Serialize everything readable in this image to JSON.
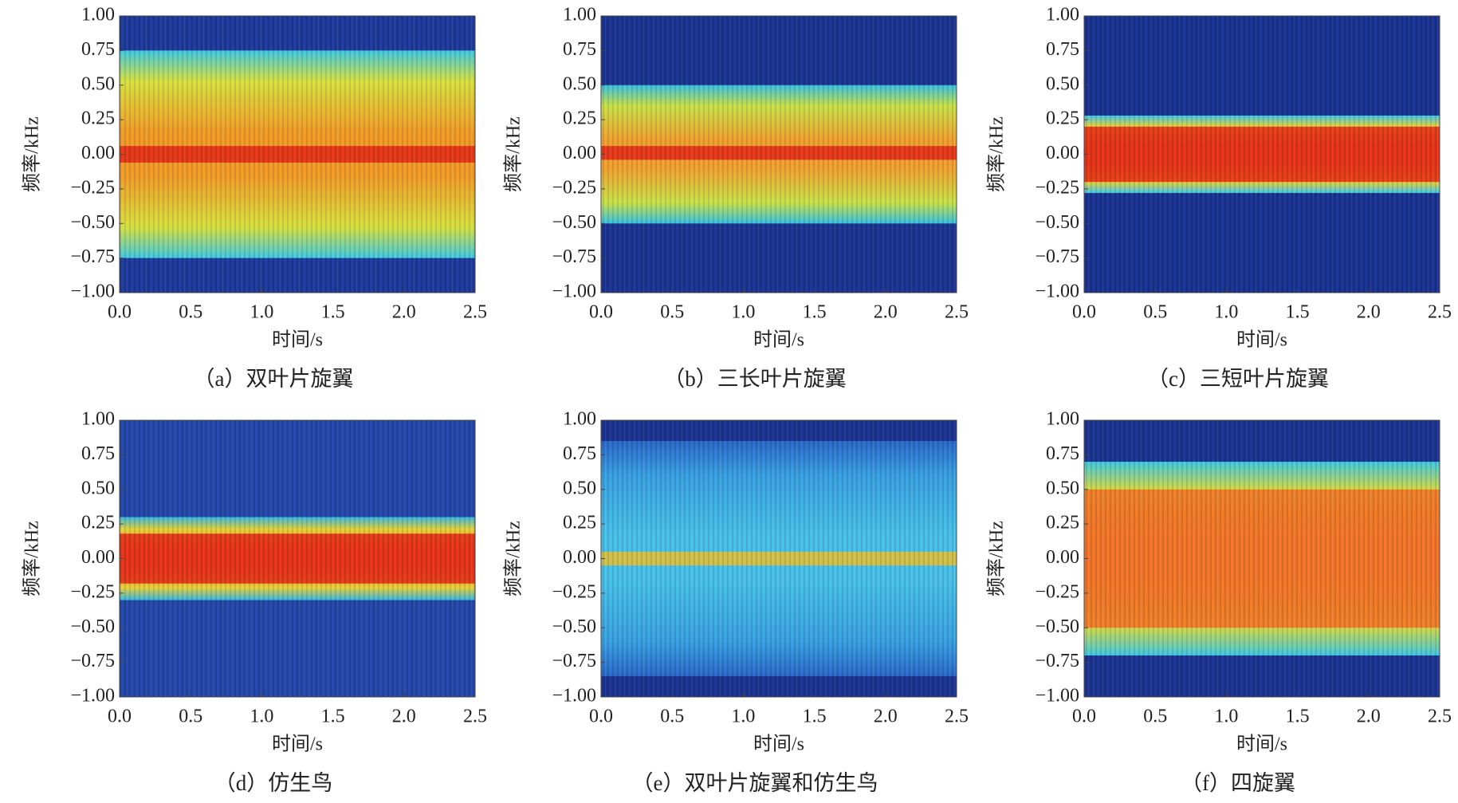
{
  "chart_data": [
    {
      "type": "spectrogram",
      "caption": "（a）双叶片旋翼",
      "x_label": "时间/s",
      "y_label": "频率/kHz",
      "xlim": [
        0,
        2.5
      ],
      "ylim": [
        -1,
        1
      ],
      "xticks": [
        {
          "value": 0,
          "label": "0.0"
        },
        {
          "value": 0.5,
          "label": "0.5"
        },
        {
          "value": 1,
          "label": "1.0"
        },
        {
          "value": 1.5,
          "label": "1.5"
        },
        {
          "value": 2,
          "label": "2.0"
        },
        {
          "value": 2.5,
          "label": "2.5"
        }
      ],
      "yticks": [
        {
          "value": 1,
          "label": "1.00"
        },
        {
          "value": 0.75,
          "label": "0.75"
        },
        {
          "value": 0.5,
          "label": "0.50"
        },
        {
          "value": 0.25,
          "label": "0.25"
        },
        {
          "value": 0,
          "label": "0.00"
        },
        {
          "value": -0.25,
          "label": "−0.25"
        },
        {
          "value": -0.5,
          "label": "−0.50"
        },
        {
          "value": -0.75,
          "label": "−0.75"
        },
        {
          "value": -1,
          "label": "−1.00"
        }
      ],
      "band": [
        -0.75,
        0.75
      ],
      "core": [
        -0.06,
        0.06
      ],
      "background": "#1e3a9a",
      "band_colors": [
        "#40c8e0",
        "#d8e040",
        "#f09a28"
      ],
      "core_color": "#e02818"
    },
    {
      "type": "spectrogram",
      "caption": "（b）三长叶片旋翼",
      "x_label": "时间/s",
      "y_label": "频率/kHz",
      "xlim": [
        0,
        2.5
      ],
      "ylim": [
        -1,
        1
      ],
      "xticks": [
        {
          "value": 0,
          "label": "0.0"
        },
        {
          "value": 0.5,
          "label": "0.5"
        },
        {
          "value": 1,
          "label": "1.0"
        },
        {
          "value": 1.5,
          "label": "1.5"
        },
        {
          "value": 2,
          "label": "2.0"
        },
        {
          "value": 2.5,
          "label": "2.5"
        }
      ],
      "yticks": [
        {
          "value": 1,
          "label": "1.00"
        },
        {
          "value": 0.75,
          "label": "0.75"
        },
        {
          "value": 0.5,
          "label": "0.50"
        },
        {
          "value": 0.25,
          "label": "0.25"
        },
        {
          "value": 0,
          "label": "0.00"
        },
        {
          "value": -0.25,
          "label": "−0.25"
        },
        {
          "value": -0.5,
          "label": "−0.50"
        },
        {
          "value": -0.75,
          "label": "−0.75"
        },
        {
          "value": -1,
          "label": "−1.00"
        }
      ],
      "band": [
        -0.5,
        0.5
      ],
      "core": [
        -0.04,
        0.06
      ],
      "background": "#1c3490",
      "band_colors": [
        "#38c0e0",
        "#c8e048",
        "#f0a030"
      ],
      "core_color": "#e02818"
    },
    {
      "type": "spectrogram",
      "caption": "（c）三短叶片旋翼",
      "x_label": "时间/s",
      "y_label": "频率/kHz",
      "xlim": [
        0,
        2.5
      ],
      "ylim": [
        -1,
        1
      ],
      "xticks": [
        {
          "value": 0,
          "label": "0.0"
        },
        {
          "value": 0.5,
          "label": "0.5"
        },
        {
          "value": 1,
          "label": "1.0"
        },
        {
          "value": 1.5,
          "label": "1.5"
        },
        {
          "value": 2,
          "label": "2.0"
        },
        {
          "value": 2.5,
          "label": "2.5"
        }
      ],
      "yticks": [
        {
          "value": 1,
          "label": "1.00"
        },
        {
          "value": 0.75,
          "label": "0.75"
        },
        {
          "value": 0.5,
          "label": "0.50"
        },
        {
          "value": 0.25,
          "label": "0.25"
        },
        {
          "value": 0,
          "label": "0.00"
        },
        {
          "value": -0.25,
          "label": "−0.25"
        },
        {
          "value": -0.5,
          "label": "−0.50"
        },
        {
          "value": -0.75,
          "label": "−0.75"
        },
        {
          "value": -1,
          "label": "−1.00"
        }
      ],
      "band": [
        -0.28,
        0.28
      ],
      "core": [
        -0.2,
        0.2
      ],
      "background": "#1a3290",
      "band_colors": [
        "#40c8e8",
        "#f0d030",
        "#f07020"
      ],
      "core_color": "#e02818"
    },
    {
      "type": "spectrogram",
      "caption": "（d）仿生鸟",
      "x_label": "时间/s",
      "y_label": "频率/kHz",
      "xlim": [
        0,
        2.5
      ],
      "ylim": [
        -1,
        1
      ],
      "xticks": [
        {
          "value": 0,
          "label": "0.0"
        },
        {
          "value": 0.5,
          "label": "0.5"
        },
        {
          "value": 1,
          "label": "1.0"
        },
        {
          "value": 1.5,
          "label": "1.5"
        },
        {
          "value": 2,
          "label": "2.0"
        },
        {
          "value": 2.5,
          "label": "2.5"
        }
      ],
      "yticks": [
        {
          "value": 1,
          "label": "1.00"
        },
        {
          "value": 0.75,
          "label": "0.75"
        },
        {
          "value": 0.5,
          "label": "0.50"
        },
        {
          "value": 0.25,
          "label": "0.25"
        },
        {
          "value": 0,
          "label": "0.00"
        },
        {
          "value": -0.25,
          "label": "−0.25"
        },
        {
          "value": -0.5,
          "label": "−0.50"
        },
        {
          "value": -0.75,
          "label": "−0.75"
        },
        {
          "value": -1,
          "label": "−1.00"
        }
      ],
      "band": [
        -0.3,
        0.3
      ],
      "core": [
        -0.18,
        0.18
      ],
      "background": "#2448a8",
      "band_colors": [
        "#38b8e0",
        "#e8d038",
        "#f07020"
      ],
      "core_color": "#e02818"
    },
    {
      "type": "spectrogram",
      "caption": "（e）双叶片旋翼和仿生鸟",
      "x_label": "时间/s",
      "y_label": "频率/kHz",
      "xlim": [
        0,
        2.5
      ],
      "ylim": [
        -1,
        1
      ],
      "xticks": [
        {
          "value": 0,
          "label": "0.0"
        },
        {
          "value": 0.5,
          "label": "0.5"
        },
        {
          "value": 1,
          "label": "1.0"
        },
        {
          "value": 1.5,
          "label": "1.5"
        },
        {
          "value": 2,
          "label": "2.0"
        },
        {
          "value": 2.5,
          "label": "2.5"
        }
      ],
      "yticks": [
        {
          "value": 1,
          "label": "1.00"
        },
        {
          "value": 0.75,
          "label": "0.75"
        },
        {
          "value": 0.5,
          "label": "0.50"
        },
        {
          "value": 0.25,
          "label": "0.25"
        },
        {
          "value": 0,
          "label": "0.00"
        },
        {
          "value": -0.25,
          "label": "−0.25"
        },
        {
          "value": -0.5,
          "label": "−0.50"
        },
        {
          "value": -0.75,
          "label": "−0.75"
        },
        {
          "value": -1,
          "label": "−1.00"
        }
      ],
      "band": [
        -0.85,
        0.85
      ],
      "core": [
        -0.05,
        0.05
      ],
      "background": "#1c3490",
      "band_colors": [
        "#2a68c8",
        "#3aa0e0",
        "#48c0e8"
      ],
      "core_color": "#e8c030"
    },
    {
      "type": "spectrogram",
      "caption": "（f）四旋翼",
      "x_label": "时间/s",
      "y_label": "频率/kHz",
      "xlim": [
        0,
        2.5
      ],
      "ylim": [
        -1,
        1
      ],
      "xticks": [
        {
          "value": 0,
          "label": "0.0"
        },
        {
          "value": 0.5,
          "label": "0.5"
        },
        {
          "value": 1,
          "label": "1.0"
        },
        {
          "value": 1.5,
          "label": "1.5"
        },
        {
          "value": 2,
          "label": "2.0"
        },
        {
          "value": 2.5,
          "label": "2.5"
        }
      ],
      "yticks": [
        {
          "value": 1,
          "label": "1.00"
        },
        {
          "value": 0.75,
          "label": "0.75"
        },
        {
          "value": 0.5,
          "label": "0.50"
        },
        {
          "value": 0.25,
          "label": "0.25"
        },
        {
          "value": 0,
          "label": "0.00"
        },
        {
          "value": -0.25,
          "label": "−0.25"
        },
        {
          "value": -0.5,
          "label": "−0.50"
        },
        {
          "value": -0.75,
          "label": "−0.75"
        },
        {
          "value": -1,
          "label": "−1.00"
        }
      ],
      "band": [
        -0.7,
        0.7
      ],
      "core": [
        -0.5,
        0.5
      ],
      "background": "#1c3490",
      "band_colors": [
        "#40c8e0",
        "#d8d840",
        "#f09030"
      ],
      "core_color": "#f07028"
    }
  ]
}
